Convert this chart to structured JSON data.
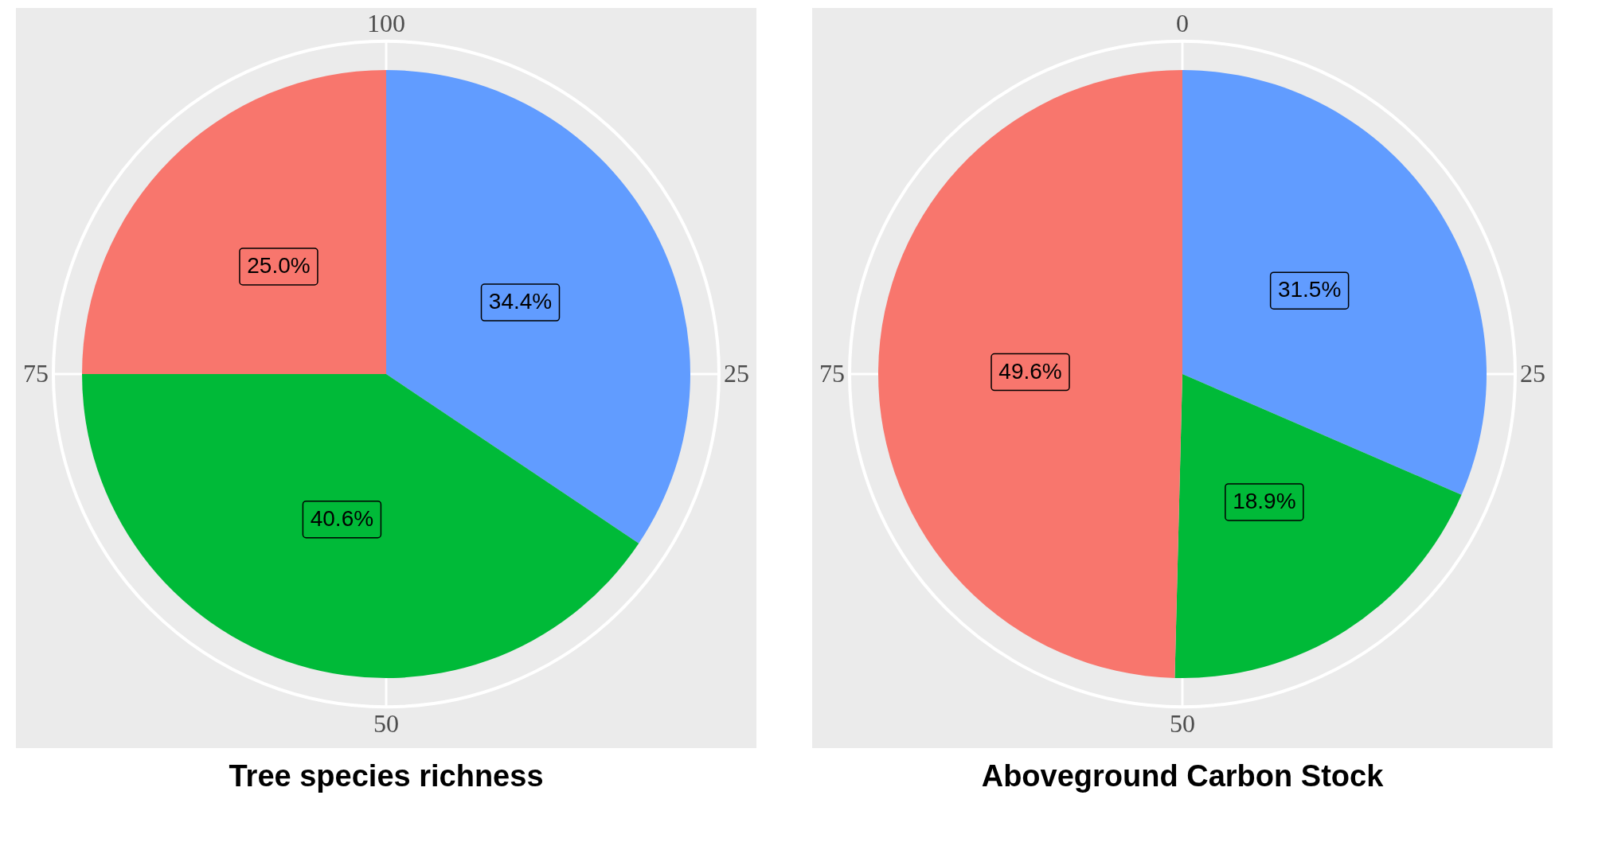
{
  "chart_data": [
    {
      "type": "pie",
      "title": "Tree species richness",
      "categories": [
        null,
        null,
        null
      ],
      "values": [
        34.4,
        40.6,
        25.0
      ],
      "colors": [
        "#619cff",
        "#00ba38",
        "#f8766d"
      ],
      "value_labels": [
        "34.4%",
        "40.6%",
        "25.0%"
      ],
      "annotations": [
        "100",
        "25",
        "50",
        "75"
      ],
      "grid": true
    },
    {
      "type": "pie",
      "title": "Aboveground Carbon Stock",
      "categories": [
        null,
        null,
        null
      ],
      "values": [
        31.5,
        18.9,
        49.6
      ],
      "colors": [
        "#619cff",
        "#00ba38",
        "#f8766d"
      ],
      "value_labels": [
        "31.5%",
        "18.9%",
        "49.6%"
      ],
      "annotations": [
        "0",
        "25",
        "50",
        "75"
      ],
      "grid": true
    }
  ]
}
